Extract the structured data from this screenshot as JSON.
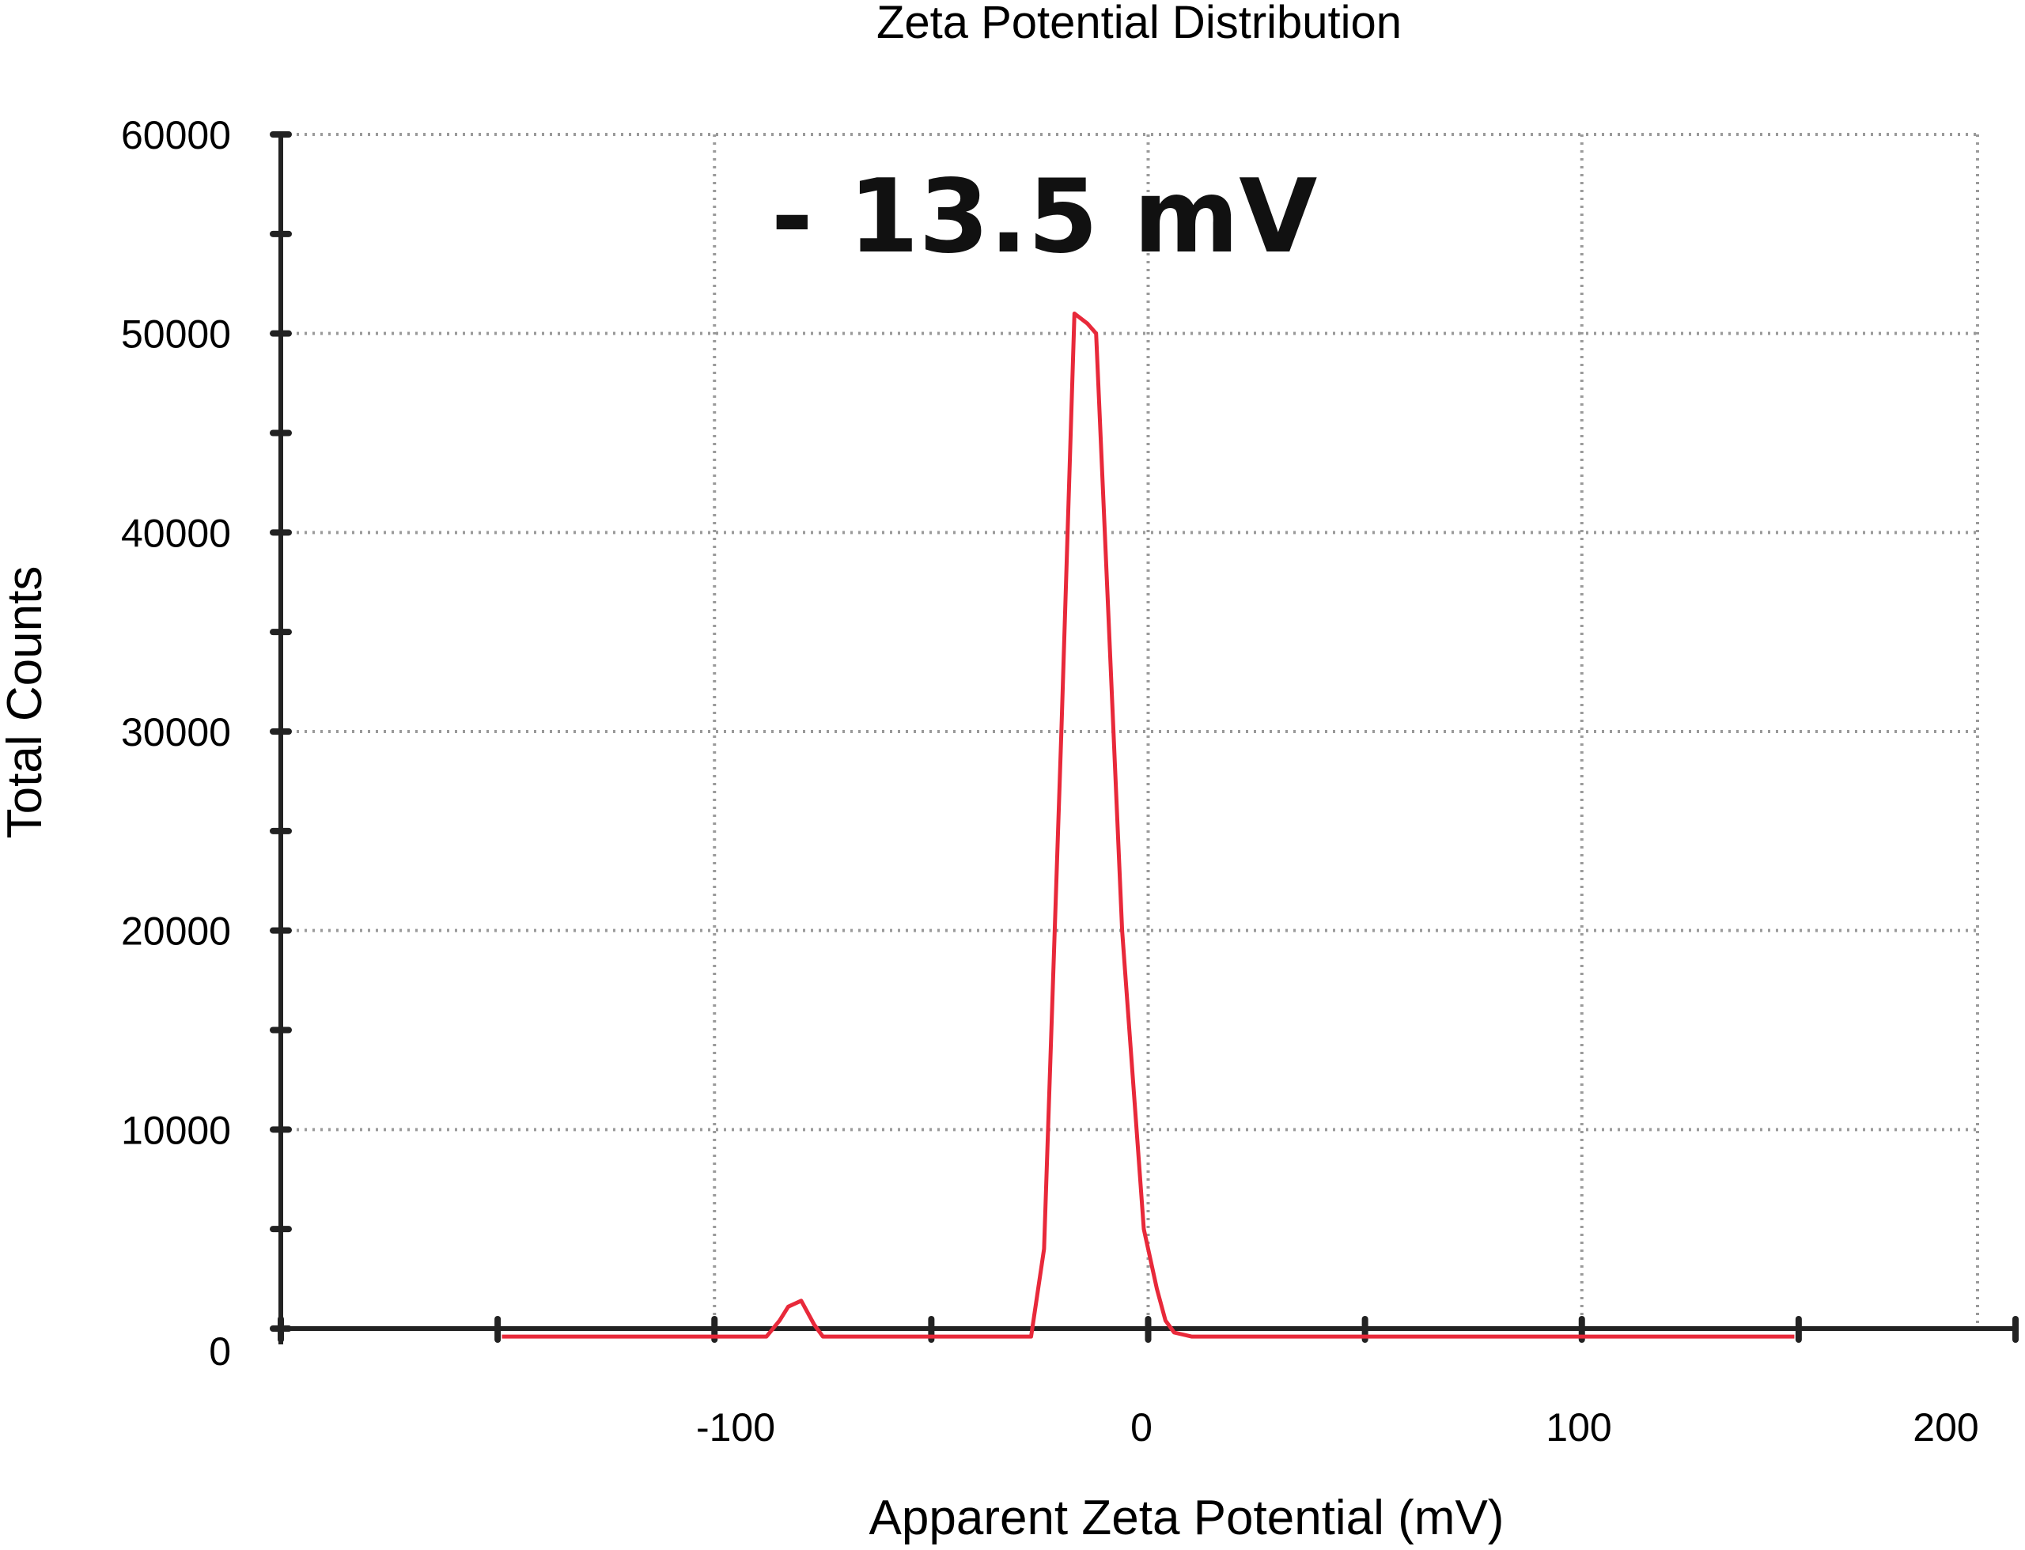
{
  "chart_data": {
    "type": "line",
    "title": "Zeta Potential Distribution",
    "xlabel": "Apparent Zeta Potential (mV)",
    "ylabel": "Total Counts",
    "xlim": [
      -200,
      200
    ],
    "ylim": [
      0,
      60000
    ],
    "x_ticks": [
      -100,
      0,
      100,
      200
    ],
    "y_ticks": [
      0,
      10000,
      20000,
      30000,
      40000,
      50000,
      60000
    ],
    "grid": true,
    "annotation": "- 13.5 mV",
    "series": [
      {
        "color": "#e8293a",
        "x": [
          -149,
          -88,
          -85,
          -83,
          -80,
          -77,
          -75,
          -50,
          -27,
          -24,
          -20,
          -17,
          -14,
          -12,
          -10,
          -6,
          -1,
          2,
          4,
          6,
          10,
          40,
          80,
          149
        ],
        "y": [
          -400,
          -400,
          400,
          1100,
          1400,
          200,
          -400,
          -400,
          -400,
          4000,
          30000,
          51000,
          50500,
          50000,
          40000,
          20000,
          5000,
          2000,
          400,
          -200,
          -400,
          -400,
          -400,
          -400
        ]
      }
    ],
    "colors": {
      "line": "#e8293a",
      "axis": "#222222",
      "grid": "#9a9a9a"
    }
  }
}
